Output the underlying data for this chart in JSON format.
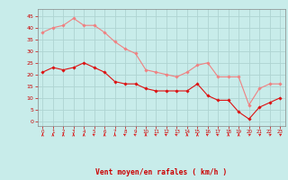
{
  "x": [
    0,
    1,
    2,
    3,
    4,
    5,
    6,
    7,
    8,
    9,
    10,
    11,
    12,
    13,
    14,
    15,
    16,
    17,
    18,
    19,
    20,
    21,
    22,
    23
  ],
  "mean_wind": [
    21,
    23,
    22,
    23,
    25,
    23,
    21,
    17,
    16,
    16,
    14,
    13,
    13,
    13,
    13,
    16,
    11,
    9,
    9,
    4,
    1,
    6,
    8,
    10
  ],
  "gust_wind": [
    38,
    40,
    41,
    44,
    41,
    41,
    38,
    34,
    31,
    29,
    22,
    21,
    20,
    19,
    21,
    24,
    25,
    19,
    19,
    19,
    7,
    14,
    16,
    16
  ],
  "mean_color": "#dd1111",
  "gust_color": "#f08080",
  "bg_color": "#c8ecea",
  "grid_color": "#aed4d2",
  "xlabel": "Vent moyen/en rafales ( km/h )",
  "xlabel_color": "#cc0000",
  "tick_color": "#cc0000",
  "spine_color": "#888888",
  "ylim": [
    -2,
    48
  ],
  "yticks": [
    0,
    5,
    10,
    15,
    20,
    25,
    30,
    35,
    40,
    45
  ],
  "xticks": [
    0,
    1,
    2,
    3,
    4,
    5,
    6,
    7,
    8,
    9,
    10,
    11,
    12,
    13,
    14,
    15,
    16,
    17,
    18,
    19,
    20,
    21,
    22,
    23
  ],
  "arrow_angles": [
    0,
    0,
    0,
    0,
    0,
    315,
    0,
    0,
    315,
    315,
    0,
    315,
    315,
    315,
    0,
    0,
    315,
    315,
    0,
    0,
    45,
    45,
    45,
    45
  ]
}
